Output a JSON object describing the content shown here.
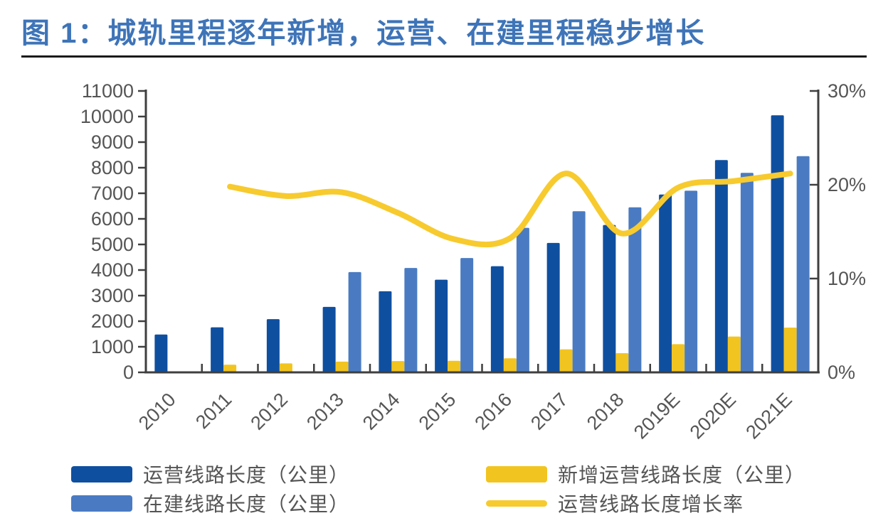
{
  "figure": {
    "title": "图 1：城轨里程逐年新增，运营、在建里程稳步增长"
  },
  "chart_data": {
    "type": "combo-bar-line",
    "title": "城轨里程逐年新增，运营、在建里程稳步增长",
    "categories": [
      "2010",
      "2011",
      "2012",
      "2013",
      "2014",
      "2015",
      "2016",
      "2017",
      "2018",
      "2019E",
      "2020E",
      "2021E"
    ],
    "series": [
      {
        "name": "运营线路长度（公里）",
        "type": "bar",
        "slot": 0,
        "axis": "left",
        "color": "#0F4FA0",
        "values": [
          1480,
          1760,
          2080,
          2560,
          3170,
          3620,
          4150,
          5060,
          5760,
          6950,
          8300,
          10050
        ]
      },
      {
        "name": "新增运营线路长度（公里）",
        "type": "bar",
        "slot": 1,
        "axis": "left",
        "color": "#F2C41F",
        "values": [
          null,
          300,
          350,
          420,
          440,
          450,
          550,
          900,
          750,
          1100,
          1400,
          1750
        ]
      },
      {
        "name": "在建线路长度（公里）",
        "type": "bar",
        "slot": 2,
        "axis": "left",
        "color": "#4A7BC2",
        "values": [
          null,
          null,
          null,
          3920,
          4080,
          4470,
          5650,
          6300,
          6450,
          7100,
          7800,
          8450
        ]
      },
      {
        "name": "运营线路长度增长率",
        "type": "line",
        "axis": "right",
        "color": "#F7CA2E",
        "values": [
          null,
          19.8,
          18.8,
          19.2,
          17.0,
          14.2,
          14.3,
          21.2,
          14.8,
          19.7,
          20.4,
          21.2
        ]
      }
    ],
    "left_axis": {
      "min": 0,
      "max": 11000,
      "step": 1000,
      "tick_labels": [
        "0",
        "1000",
        "2000",
        "3000",
        "4000",
        "5000",
        "6000",
        "7000",
        "8000",
        "9000",
        "10000",
        "11000"
      ]
    },
    "right_axis": {
      "min": 0,
      "max": 30,
      "step": 10,
      "tick_labels": [
        "0%",
        "10%",
        "20%",
        "30%"
      ]
    },
    "grid": false,
    "legend_position": "bottom"
  },
  "legend": {
    "items": [
      {
        "label": "运营线路长度（公里）",
        "swatch": "bar",
        "color": "#0F4FA0"
      },
      {
        "label": "在建线路长度（公里）",
        "swatch": "bar",
        "color": "#4A7BC2"
      },
      {
        "label": "新增运营线路长度（公里）",
        "swatch": "bar",
        "color": "#F2C41F"
      },
      {
        "label": "运营线路长度增长率",
        "swatch": "line",
        "color": "#F7CA2E"
      }
    ]
  },
  "colors": {
    "title": "#3E74B8",
    "divider": "#1A1A1A",
    "axis_line": "#3F3F3F",
    "axis_text": "#555555",
    "operating_bar": "#0F4FA0",
    "under_construction_bar": "#4A7BC2",
    "new_operating_bar": "#F2C41F",
    "growth_line": "#F7CA2E"
  }
}
